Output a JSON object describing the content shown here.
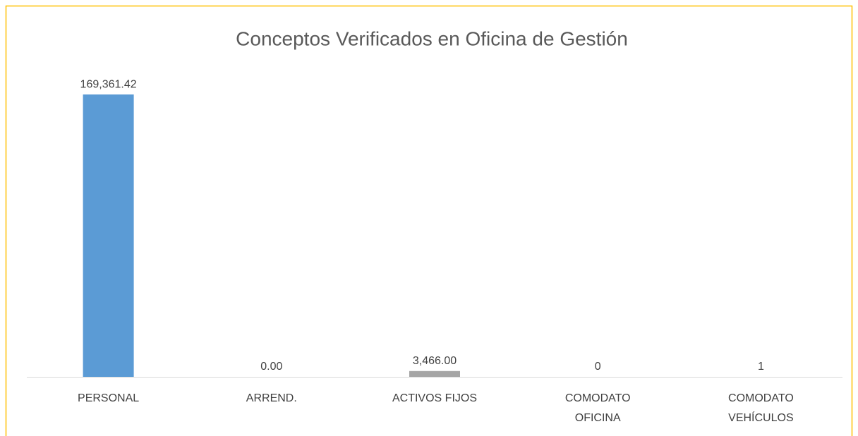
{
  "chart_data": {
    "type": "bar",
    "title": "Conceptos Verificados en Oficina de Gestión",
    "categories": [
      "PERSONAL",
      "ARREND.",
      "ACTIVOS FIJOS",
      "COMODATO OFICINA",
      "COMODATO VEHÍCULOS"
    ],
    "values": [
      169361.42,
      0,
      3466,
      0,
      1
    ],
    "value_labels": [
      "169,361.42",
      "0.00",
      "3,466.00",
      "0",
      "1"
    ],
    "colors": [
      "#5b9bd5",
      "#ed7d31",
      "#a5a5a5",
      "#ffc000",
      "#4472c4"
    ],
    "ylim": [
      0,
      180000
    ]
  }
}
